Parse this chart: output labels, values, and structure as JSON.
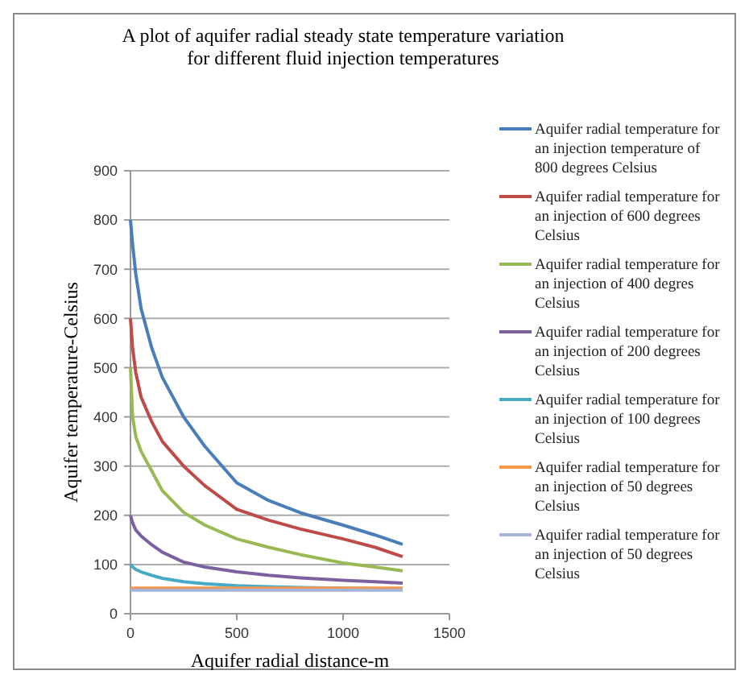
{
  "chart_data": {
    "type": "line",
    "title": "A plot of aquifer radial steady state temperature variation for different fluid injection temperatures",
    "xlabel": "Aquifer radial distance-m",
    "ylabel": "Aquifer temperature-Celsius",
    "xlim": [
      0,
      1500
    ],
    "xticks": [
      0,
      500,
      1000,
      1500
    ],
    "ylim": [
      0,
      900
    ],
    "yticks": [
      0,
      100,
      200,
      300,
      400,
      500,
      600,
      700,
      800,
      900
    ],
    "grid": "y",
    "legend": "right",
    "marker": "none",
    "line_style": "solid",
    "x": [
      0,
      10,
      25,
      50,
      100,
      150,
      250,
      350,
      500,
      650,
      800,
      1000,
      1150,
      1280
    ],
    "series": [
      {
        "name": "Aquifer radial temperature for an injection temperature of 800 degrees Celsius",
        "color": "#4a7ebb",
        "values": [
          800,
          750,
          690,
          620,
          540,
          480,
          400,
          340,
          266,
          230,
          205,
          180,
          160,
          141
        ]
      },
      {
        "name": "Aquifer radial temperature for an injection of 600 degrees Celsius",
        "color": "#be4b48",
        "values": [
          600,
          540,
          490,
          440,
          390,
          350,
          300,
          260,
          212,
          190,
          172,
          152,
          135,
          116
        ]
      },
      {
        "name": "Aquifer radial temperature for an injection of 400 degres Celsius",
        "color": "#98b954",
        "values": [
          500,
          400,
          360,
          330,
          290,
          250,
          206,
          180,
          152,
          135,
          120,
          103,
          95,
          87
        ]
      },
      {
        "name": "Aquifer radial temperature for an injection of 200 degrees Celsius",
        "color": "#7d60a0",
        "values": [
          200,
          185,
          170,
          158,
          140,
          125,
          105,
          95,
          85,
          78,
          73,
          68,
          65,
          62
        ]
      },
      {
        "name": "Aquifer radial temperature for an injection of 100 degrees Celsius",
        "color": "#46aac5",
        "values": [
          100,
          95,
          90,
          85,
          78,
          72,
          65,
          61,
          57,
          55,
          53,
          52,
          51,
          50
        ]
      },
      {
        "name": "Aquifer radial temperature for an injection of 50 degrees Celsius",
        "color": "#f79646",
        "values": [
          52,
          52,
          52,
          52,
          52,
          52,
          52,
          52,
          52,
          52,
          52,
          52,
          52,
          52
        ]
      },
      {
        "name": "Aquifer radial temperature for an injection of 50 degrees Celsius",
        "color": "#a5b4d8",
        "values": [
          48,
          48,
          48,
          48,
          48,
          48,
          48,
          48,
          48,
          48,
          48,
          48,
          48,
          48
        ]
      }
    ]
  }
}
